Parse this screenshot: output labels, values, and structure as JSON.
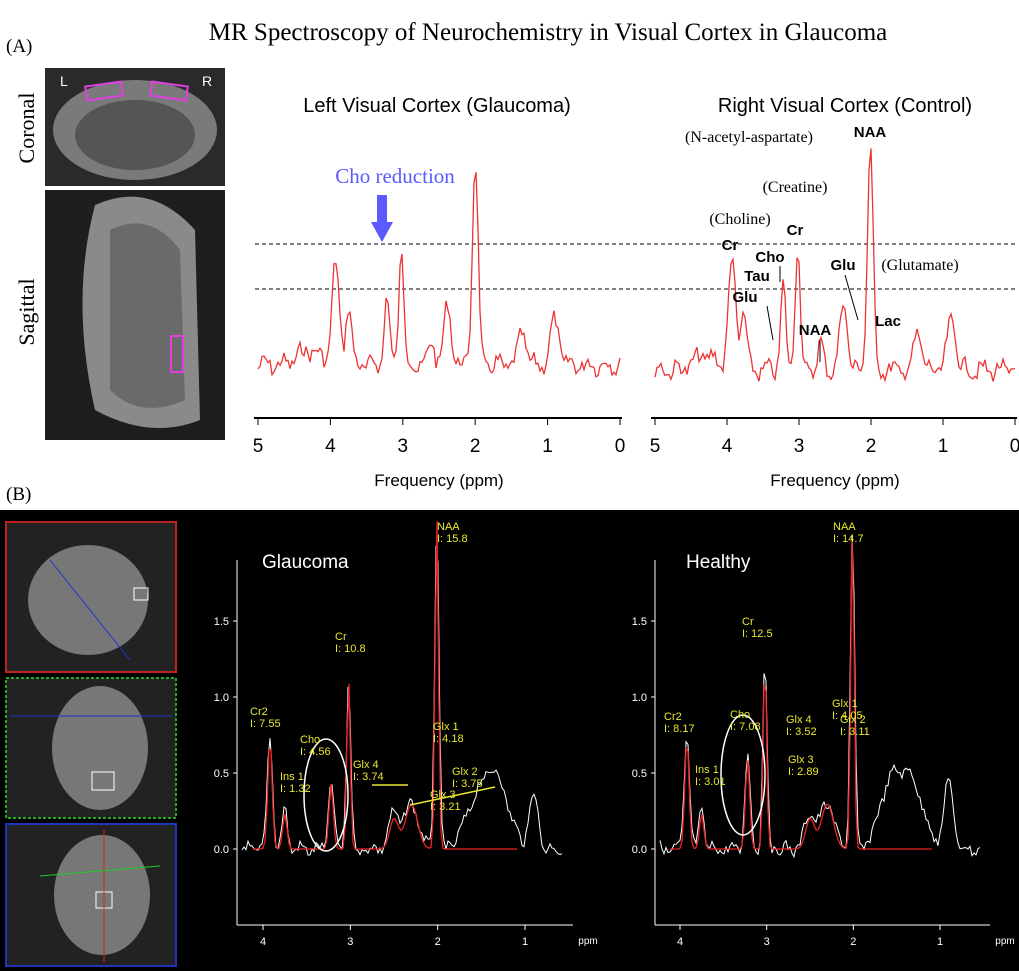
{
  "title": "MR Spectroscopy of Neurochemistry in Visual Cortex in Glaucoma",
  "panel_a": {
    "label": "(A)",
    "coronal_label": "Coronal",
    "sagittal_label": "Sagittal",
    "left_marker": "L",
    "right_marker": "R",
    "glaucoma_plot": {
      "title": "Left Visual Cortex (Glaucoma)",
      "annotation": "Cho reduction",
      "xticks": [
        "5",
        "4",
        "3",
        "2",
        "1",
        "0"
      ],
      "xlabel": "Frequency (ppm)"
    },
    "control_plot": {
      "title": "Right Visual Cortex (Control)",
      "xticks": [
        "5",
        "4",
        "3",
        "2",
        "1",
        "0"
      ],
      "xlabel": "Frequency (ppm)",
      "annotations": [
        "(N-acetyl-aspartate)",
        "NAA",
        "(Creatine)",
        "Cr",
        "(Choline)",
        "Cr",
        "Cho",
        "Tau",
        "Glu",
        "Glu",
        "(Glutamate)",
        "NAA",
        "Lac"
      ]
    }
  },
  "panel_b": {
    "label": "(B)",
    "plots": [
      {
        "title": "Glaucoma",
        "yticks": [
          "1.5",
          "1.0",
          "0.5",
          "0.0"
        ],
        "xticks": [
          "4",
          "3",
          "2",
          "1"
        ],
        "xunit": "ppm",
        "peaks": [
          {
            "name": "NAA",
            "integral": "I: 15.8"
          },
          {
            "name": "Cr",
            "integral": "I: 10.8"
          },
          {
            "name": "Cr2",
            "integral": "I: 7.55"
          },
          {
            "name": "Cho",
            "integral": "I: 4.56"
          },
          {
            "name": "Ins 1",
            "integral": "I: 1.32"
          },
          {
            "name": "Glx 4",
            "integral": "I: 3.74"
          },
          {
            "name": "Glx 3",
            "integral": "I: 3.21"
          },
          {
            "name": "Glx 1",
            "integral": "I: 4.18"
          },
          {
            "name": "Glx 2",
            "integral": "I: 3.75"
          }
        ]
      },
      {
        "title": "Healthy",
        "yticks": [
          "1.5",
          "1.0",
          "0.5",
          "0.0"
        ],
        "xticks": [
          "4",
          "3",
          "2",
          "1"
        ],
        "xunit": "ppm",
        "peaks": [
          {
            "name": "NAA",
            "integral": "I: 14.7"
          },
          {
            "name": "Cr",
            "integral": "I: 12.5"
          },
          {
            "name": "Cr2",
            "integral": "I: 8.17"
          },
          {
            "name": "Cho",
            "integral": "I: 7.08"
          },
          {
            "name": "Ins 1",
            "integral": "I: 3.01"
          },
          {
            "name": "Glx 4",
            "integral": "I: 3.52"
          },
          {
            "name": "Glx 3",
            "integral": "I: 2.89"
          },
          {
            "name": "Glx 1",
            "integral": "I: 4.05"
          },
          {
            "name": "Glx 2",
            "integral": "I: 3.11"
          }
        ]
      }
    ]
  }
}
